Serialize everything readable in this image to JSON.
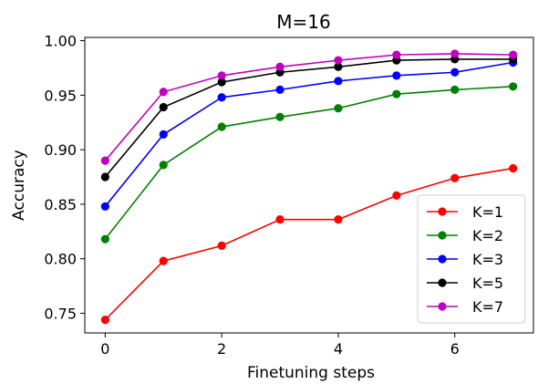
{
  "chart_data": {
    "type": "line",
    "title": "M=16",
    "xlabel": "Finetuning steps",
    "ylabel": "Accuracy",
    "x": [
      0,
      1,
      2,
      3,
      4,
      5,
      6,
      7
    ],
    "xlim": [
      -0.35,
      7.35
    ],
    "ylim": [
      0.732,
      1.003
    ],
    "xticks": [
      0,
      2,
      4,
      6
    ],
    "xtick_labels": [
      "0",
      "2",
      "4",
      "6"
    ],
    "yticks": [
      0.75,
      0.8,
      0.85,
      0.9,
      0.95,
      1.0
    ],
    "ytick_labels": [
      "0.75",
      "0.80",
      "0.85",
      "0.90",
      "0.95",
      "1.00"
    ],
    "grid": false,
    "legend_position": "lower-right",
    "series": [
      {
        "name": "K=1",
        "color": "#ff0000",
        "values": [
          0.744,
          0.798,
          0.812,
          0.836,
          0.836,
          0.858,
          0.874,
          0.883
        ]
      },
      {
        "name": "K=2",
        "color": "#008000",
        "values": [
          0.818,
          0.886,
          0.921,
          0.93,
          0.938,
          0.951,
          0.955,
          0.958
        ]
      },
      {
        "name": "K=3",
        "color": "#0000ff",
        "values": [
          0.848,
          0.914,
          0.948,
          0.955,
          0.963,
          0.968,
          0.971,
          0.98
        ]
      },
      {
        "name": "K=5",
        "color": "#000000",
        "values": [
          0.875,
          0.939,
          0.962,
          0.971,
          0.976,
          0.982,
          0.983,
          0.983
        ]
      },
      {
        "name": "K=7",
        "color": "#bf00bf",
        "values": [
          0.89,
          0.953,
          0.968,
          0.976,
          0.982,
          0.987,
          0.988,
          0.987
        ]
      }
    ]
  }
}
